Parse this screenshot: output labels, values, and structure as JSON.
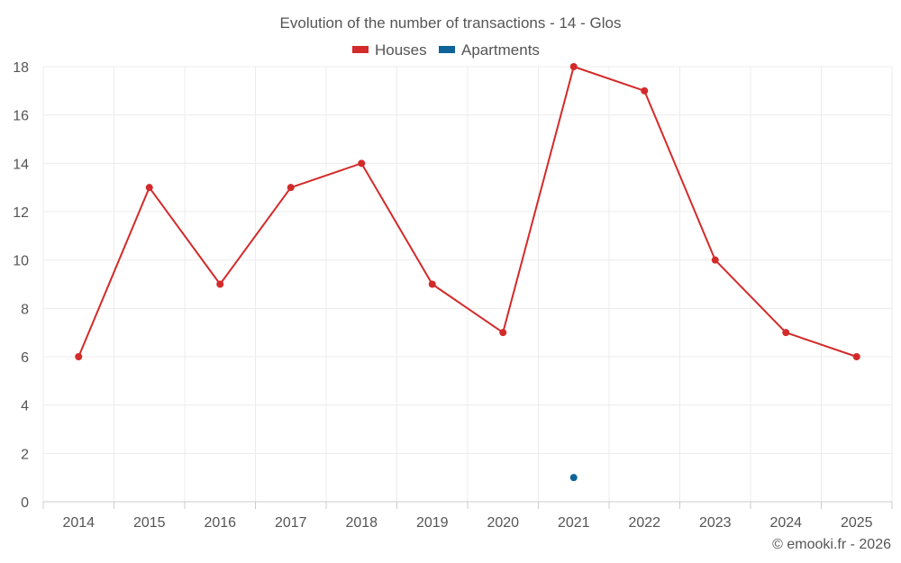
{
  "chart_data": {
    "type": "line",
    "title": "Evolution of the number of transactions - 14 - Glos",
    "categories": [
      "2014",
      "2015",
      "2016",
      "2017",
      "2018",
      "2019",
      "2020",
      "2021",
      "2022",
      "2023",
      "2024",
      "2025"
    ],
    "series": [
      {
        "name": "Houses",
        "color": "#d32a2a",
        "values": [
          6,
          13,
          9,
          13,
          14,
          9,
          7,
          18,
          17,
          10,
          7,
          6
        ]
      },
      {
        "name": "Apartments",
        "color": "#0e6399",
        "values": [
          null,
          null,
          null,
          null,
          null,
          null,
          null,
          1,
          null,
          null,
          null,
          null
        ]
      }
    ],
    "ylim": [
      0,
      18
    ],
    "yticks": [
      0,
      2,
      4,
      6,
      8,
      10,
      12,
      14,
      16,
      18
    ],
    "grid": true,
    "legend_position": "top-center",
    "xlabel": "",
    "ylabel": ""
  },
  "credit": "© emooki.fr - 2026"
}
